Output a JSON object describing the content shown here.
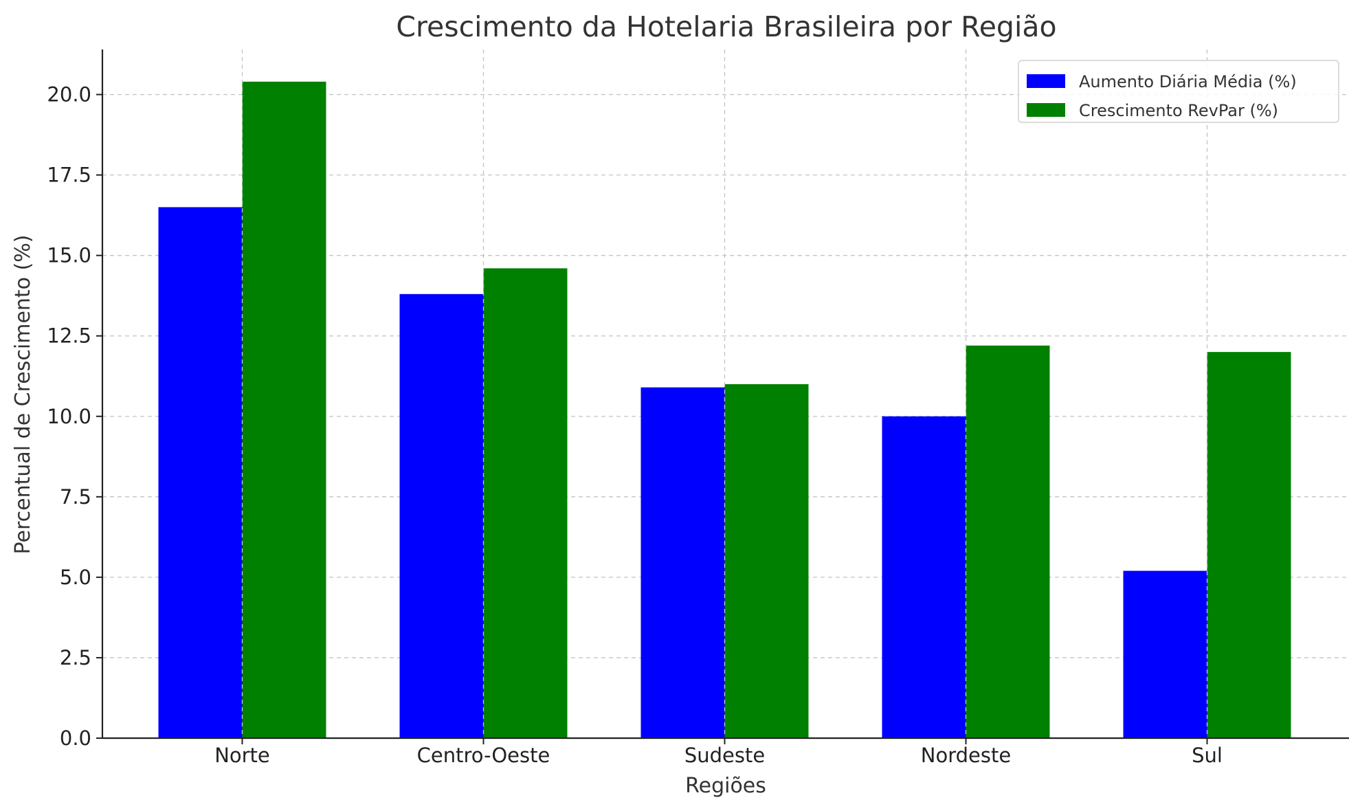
{
  "chart_data": {
    "type": "bar",
    "title": "Crescimento da Hotelaria Brasileira por Região",
    "xlabel": "Regiões",
    "ylabel": "Percentual de Crescimento (%)",
    "categories": [
      "Norte",
      "Centro-Oeste",
      "Sudeste",
      "Nordeste",
      "Sul"
    ],
    "series": [
      {
        "name": "Aumento Diária Média (%)",
        "color": "#0000ff",
        "values": [
          16.5,
          13.8,
          10.9,
          10.0,
          5.2
        ]
      },
      {
        "name": "Crescimento RevPar (%)",
        "color": "#008000",
        "values": [
          20.4,
          14.6,
          11.0,
          12.2,
          12.0
        ]
      }
    ],
    "ylim": [
      0,
      21.4
    ],
    "yticks": [
      "0.0",
      "2.5",
      "5.0",
      "7.5",
      "10.0",
      "12.5",
      "15.0",
      "17.5",
      "20.0"
    ],
    "grid": true,
    "legend_position": "top-right"
  }
}
